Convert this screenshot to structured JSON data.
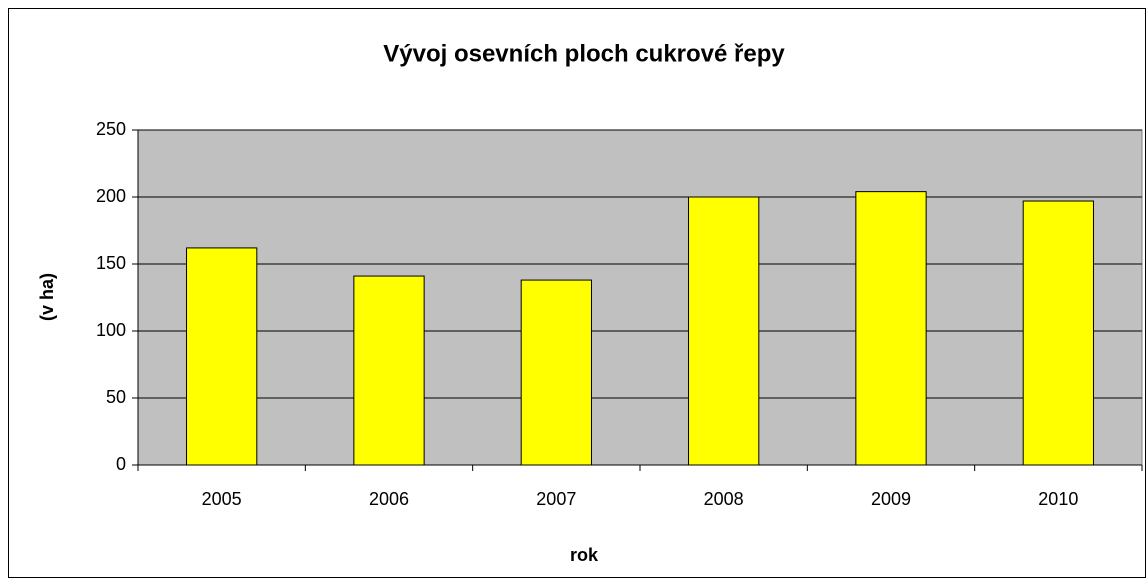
{
  "chart_data": {
    "type": "bar",
    "title": "Vývoj osevních ploch cukrové řepy",
    "x_label": "rok",
    "y_label": "(v ha)",
    "categories": [
      "2005",
      "2006",
      "2007",
      "2008",
      "2009",
      "2010"
    ],
    "values": [
      162,
      141,
      138,
      200,
      204,
      197
    ],
    "color": "#ffff00",
    "ylim": [
      0,
      250
    ],
    "yticks": [
      0,
      50,
      100,
      150,
      200,
      250
    ],
    "grid": true
  }
}
